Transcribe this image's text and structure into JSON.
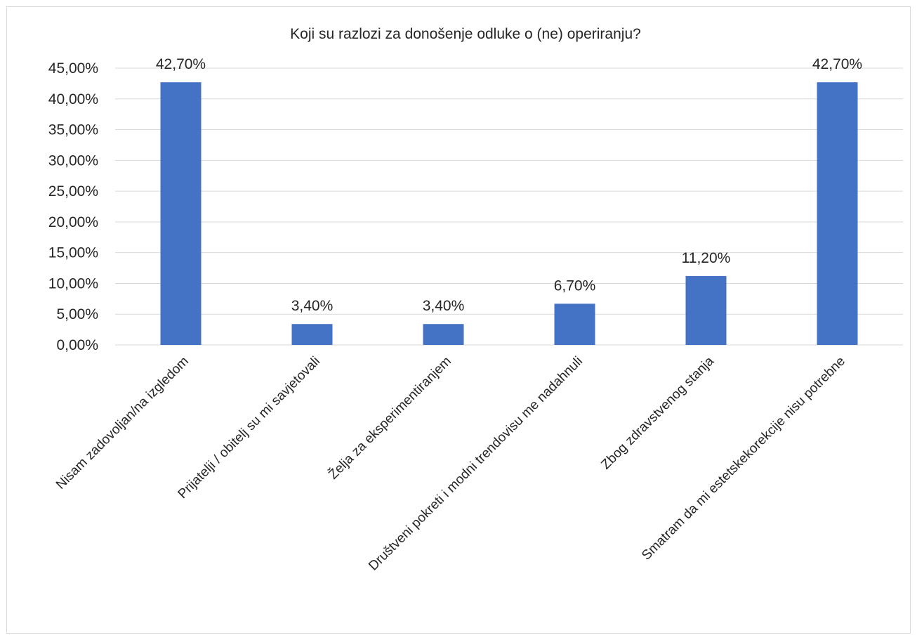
{
  "chart_data": {
    "type": "bar",
    "title": "Koji su razlozi za donošenje odluke o (ne) operiranju?",
    "categories": [
      "Nisam zadovoljan/na izgledom",
      "Prijatelji / obitelj su mi savjetovali",
      "Želja za eksperimentiranjem",
      "Društveni pokreti i modni trendovisu me nadahnuli",
      "Zbog zdravstvenog stanja",
      "Smatram da mi estetskekorekcije nisu potrebne"
    ],
    "values": [
      42.7,
      3.4,
      3.4,
      6.7,
      11.2,
      42.7
    ],
    "data_labels": [
      "42,70%",
      "3,40%",
      "3,40%",
      "6,70%",
      "11,20%",
      "42,70%"
    ],
    "yticks": [
      0,
      5,
      10,
      15,
      20,
      25,
      30,
      35,
      40,
      45
    ],
    "ytick_labels": [
      "0,00%",
      "5,00%",
      "10,00%",
      "15,00%",
      "20,00%",
      "25,00%",
      "30,00%",
      "35,00%",
      "40,00%",
      "45,00%"
    ],
    "ylim": [
      0,
      45
    ],
    "xlabel": "",
    "ylabel": "",
    "grid": true,
    "bar_color": "#4472c4"
  }
}
